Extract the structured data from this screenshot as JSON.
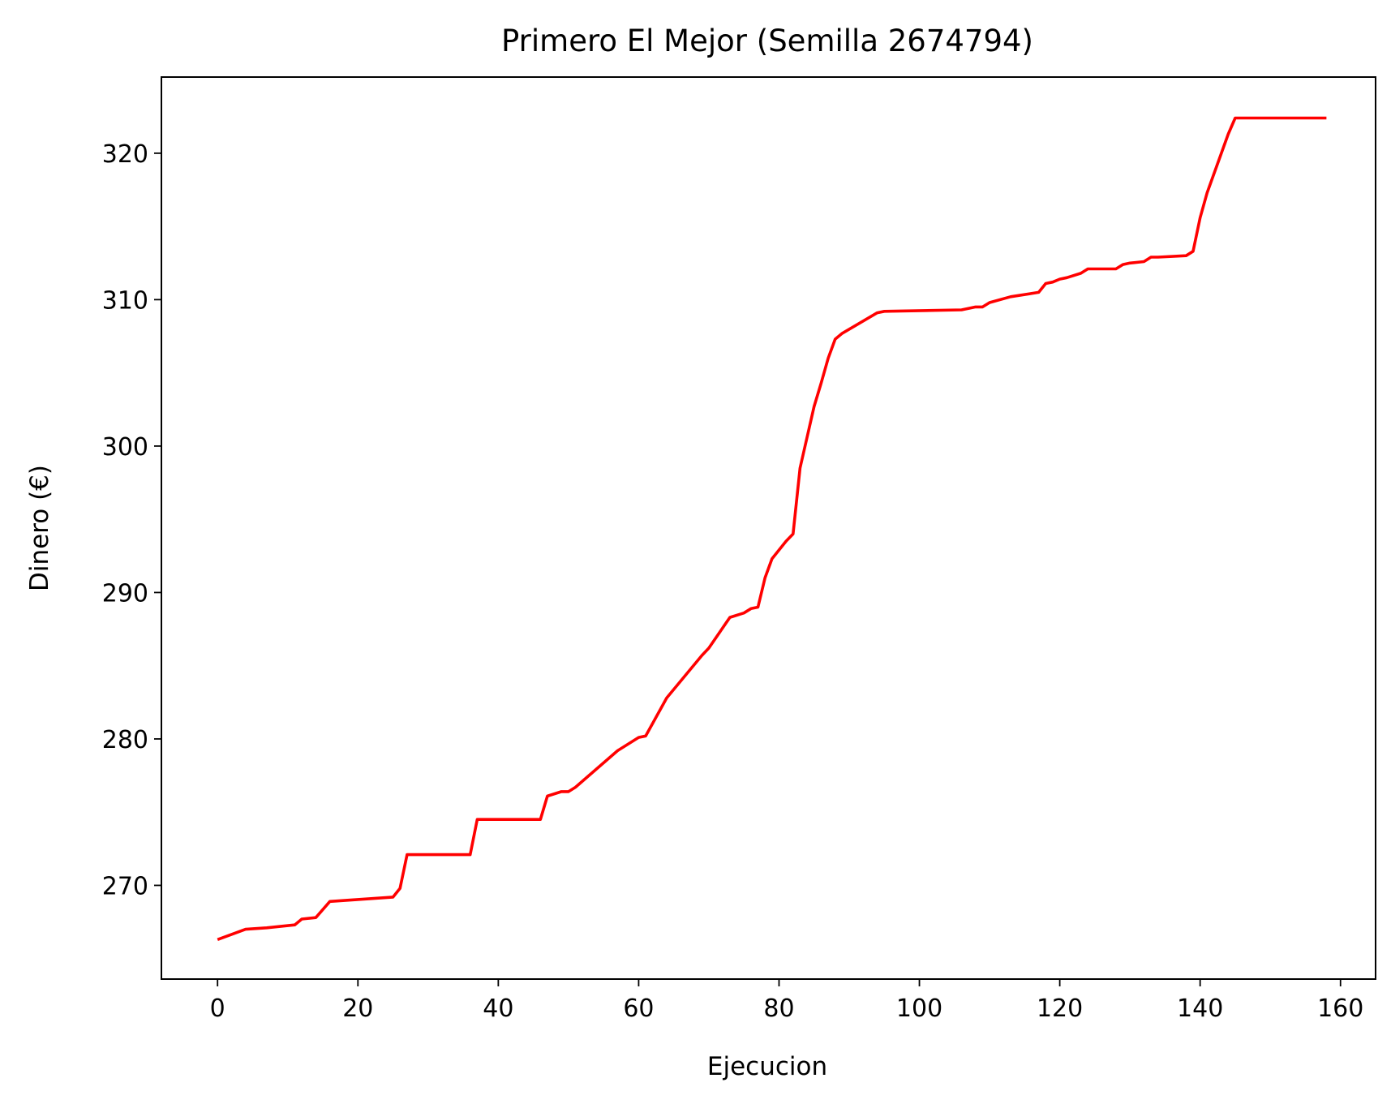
{
  "chart_data": {
    "type": "line",
    "title": "Primero El Mejor (Semilla 2674794)",
    "xlabel": "Ejecucion",
    "ylabel": "Dinero (€)",
    "xlim": [
      -8,
      165
    ],
    "ylim": [
      263.6,
      325.2
    ],
    "xticks": [
      0,
      20,
      40,
      60,
      80,
      100,
      120,
      140,
      160
    ],
    "yticks": [
      270,
      280,
      290,
      300,
      310,
      320
    ],
    "grid": false,
    "line_color": "#ff0000",
    "series": [
      {
        "x": [
          0,
          4,
          7,
          11,
          12,
          14,
          16,
          25,
          26,
          27,
          36,
          37,
          46,
          47,
          49,
          50,
          51,
          57,
          60,
          61,
          64,
          69,
          70,
          73,
          75,
          76,
          77,
          78,
          79,
          81,
          82,
          83,
          85,
          86,
          87,
          88,
          89,
          94,
          95,
          106,
          108,
          109,
          110,
          113,
          117,
          118,
          119,
          120,
          121,
          123,
          124,
          128,
          129,
          130,
          132,
          133,
          134,
          138,
          139,
          140,
          141,
          144,
          145,
          158
        ],
        "y": [
          266.3,
          267.0,
          267.1,
          267.3,
          267.7,
          267.8,
          268.9,
          269.2,
          269.8,
          272.1,
          272.1,
          274.5,
          274.5,
          276.1,
          276.4,
          276.4,
          276.7,
          279.2,
          280.1,
          280.2,
          282.8,
          285.7,
          286.2,
          288.3,
          288.6,
          288.9,
          289.0,
          291.0,
          292.3,
          293.5,
          294.0,
          298.5,
          302.7,
          304.3,
          306.0,
          307.3,
          307.7,
          309.1,
          309.2,
          309.3,
          309.5,
          309.5,
          309.8,
          310.2,
          310.5,
          311.1,
          311.2,
          311.4,
          311.5,
          311.8,
          312.1,
          312.1,
          312.4,
          312.5,
          312.6,
          312.9,
          312.9,
          313.0,
          313.3,
          315.6,
          317.3,
          321.3,
          322.4,
          322.4
        ]
      }
    ]
  }
}
